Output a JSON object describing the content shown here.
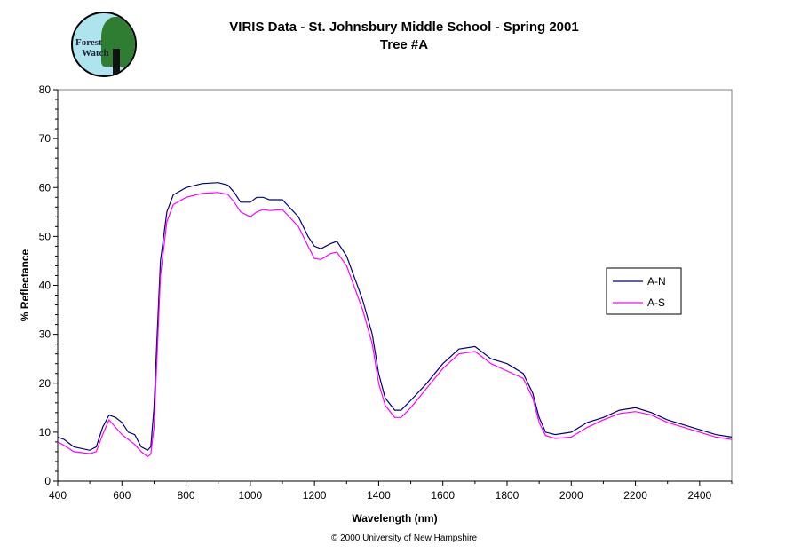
{
  "logo": {
    "text_line1": "Forest",
    "text_line2": "Watch"
  },
  "chart_data": {
    "type": "line",
    "title": "VIRIS Data - St. Johnsbury Middle School - Spring 2001",
    "subtitle": "Tree #A",
    "xlabel": "Wavelength (nm)",
    "ylabel": "% Reflectance",
    "xlim": [
      400,
      2500
    ],
    "ylim": [
      0,
      80
    ],
    "xticks": [
      400,
      600,
      800,
      1000,
      1200,
      1400,
      1600,
      1800,
      2000,
      2200,
      2400
    ],
    "yticks": [
      0,
      10,
      20,
      30,
      40,
      50,
      60,
      70,
      80
    ],
    "grid": false,
    "legend_placement": "right",
    "x": [
      400,
      420,
      450,
      500,
      520,
      540,
      560,
      580,
      600,
      620,
      640,
      660,
      680,
      690,
      700,
      710,
      720,
      740,
      760,
      800,
      850,
      900,
      930,
      950,
      970,
      1000,
      1020,
      1040,
      1060,
      1100,
      1150,
      1180,
      1200,
      1220,
      1250,
      1270,
      1300,
      1350,
      1380,
      1400,
      1420,
      1450,
      1470,
      1500,
      1550,
      1600,
      1650,
      1700,
      1750,
      1800,
      1850,
      1880,
      1900,
      1920,
      1950,
      2000,
      2050,
      2100,
      2150,
      2200,
      2250,
      2300,
      2350,
      2400,
      2450,
      2500
    ],
    "series": [
      {
        "name": "A-N",
        "color": "#000080",
        "values": [
          9,
          8.5,
          7,
          6.3,
          7,
          11,
          13.5,
          13,
          12,
          10,
          9.5,
          7,
          6.3,
          7,
          15,
          30,
          45,
          55,
          58.5,
          60,
          60.8,
          61,
          60.5,
          59,
          57,
          57,
          58,
          58,
          57.5,
          57.5,
          54,
          50,
          48,
          47.5,
          48.5,
          49,
          46,
          37,
          30,
          22,
          17,
          14.5,
          14.5,
          16.5,
          20,
          24,
          27,
          27.5,
          25,
          24,
          22,
          18,
          13,
          10,
          9.5,
          10,
          12,
          13,
          14.5,
          15,
          14,
          12.5,
          11.5,
          10.5,
          9.5,
          9
        ]
      },
      {
        "name": "A-S",
        "color": "#FF00FF",
        "values": [
          8,
          7.3,
          6,
          5.6,
          6,
          9.5,
          12.5,
          11,
          9.5,
          8.5,
          7.5,
          6,
          5,
          5.5,
          11,
          26,
          42,
          53,
          56.5,
          58,
          58.8,
          59,
          58.6,
          57,
          55,
          54,
          55,
          55.5,
          55.3,
          55.5,
          52,
          48,
          45.5,
          45.3,
          46.5,
          46.8,
          44,
          35,
          28,
          20,
          15.5,
          13,
          13,
          15,
          19,
          23,
          26,
          26.5,
          24,
          22.5,
          21,
          17,
          12,
          9.3,
          8.7,
          9,
          11,
          12.5,
          13.8,
          14.2,
          13.5,
          12,
          11,
          10,
          9,
          8.5
        ]
      }
    ]
  },
  "footer": {
    "copyright": "© 2000 University of New Hampshire"
  }
}
